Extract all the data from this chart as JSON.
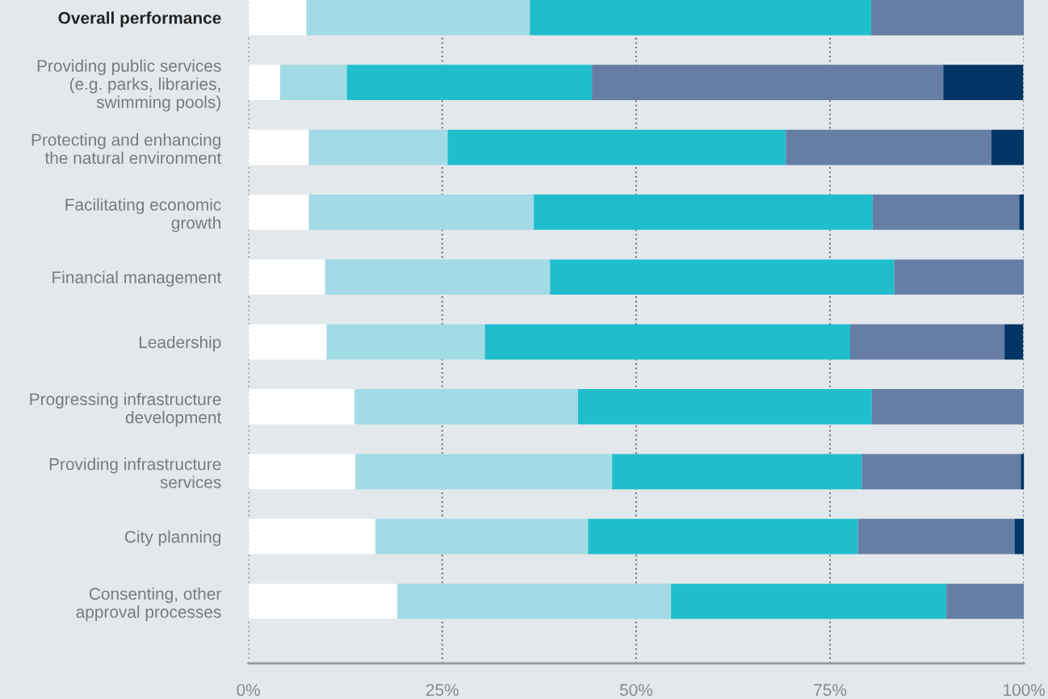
{
  "chart_data": {
    "type": "bar",
    "orientation": "horizontal",
    "stacked": true,
    "categories": [
      "Overall performance",
      "Providing public services\n(e.g. parks, libraries,\nswimming pools)",
      "Protecting and enhancing\nthe natural environment",
      "Facilitating economic\ngrowth",
      "Financial management",
      "Leadership",
      "Progressing infrastructure\ndevelopment",
      "Providing infrastructure\nservices",
      "City planning",
      "Consenting, other\napproval processes"
    ],
    "series": [
      {
        "color": "#ffffff",
        "values": [
          7.5,
          4.1,
          7.8,
          7.8,
          9.9,
          10.1,
          13.7,
          13.8,
          16.4,
          19.2
        ]
      },
      {
        "color": "#a2dbe5",
        "values": [
          28.8,
          8.6,
          17.9,
          29.0,
          29.0,
          20.4,
          28.8,
          33.1,
          27.4,
          35.3
        ]
      },
      {
        "color": "#20becd",
        "values": [
          44.0,
          31.6,
          43.6,
          43.7,
          44.4,
          47.1,
          37.9,
          32.2,
          34.8,
          35.5
        ]
      },
      {
        "color": "#667ea6",
        "values": [
          19.7,
          45.3,
          26.5,
          18.9,
          16.7,
          19.9,
          19.6,
          20.5,
          20.2,
          10.0
        ]
      },
      {
        "color": "#013565",
        "values": [
          0,
          10.3,
          4.2,
          0.6,
          0,
          2.4,
          0,
          0.5,
          1.2,
          0
        ]
      }
    ],
    "xlim": [
      0,
      100
    ],
    "xticks": [
      {
        "value": 0,
        "label": "0%"
      },
      {
        "value": 25,
        "label": "25%"
      },
      {
        "value": 50,
        "label": "50%"
      },
      {
        "value": 75,
        "label": "75%"
      },
      {
        "value": 100,
        "label": "100%"
      }
    ],
    "grid": "x",
    "legend": false
  }
}
